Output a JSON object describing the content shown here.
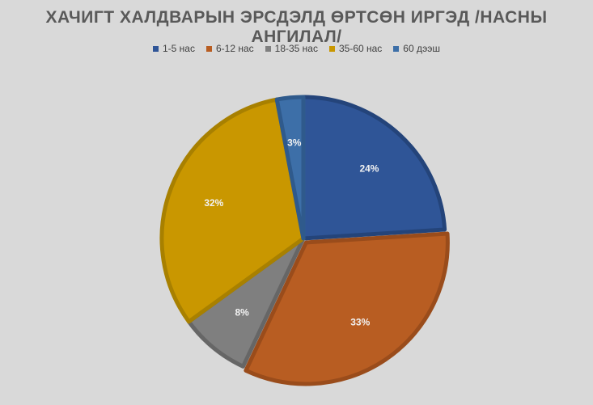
{
  "chart_data": {
    "type": "pie",
    "title": "ХАЧИГТ ХАЛДВАРЫН ЭРСДЭЛД ӨРТСӨН ИРГЭД /НАСНЫ АНГИЛАЛ/",
    "legend_position": "top",
    "categories": [
      "1-5 нас",
      "6-12 нас",
      "18-35 нас",
      "35-60 нас",
      "60 дээш"
    ],
    "values": [
      24,
      33,
      8,
      32,
      3
    ],
    "data_labels": [
      "24%",
      "33%",
      "8%",
      "32%",
      "3%"
    ],
    "colors": [
      "#2f5597",
      "#b85d22",
      "#7f7f7f",
      "#c99700",
      "#3d6fa8"
    ],
    "edge_colors": [
      "#24447a",
      "#9a4c1b",
      "#666666",
      "#a88000",
      "#2f5a8c"
    ],
    "exploded_index": 1
  }
}
